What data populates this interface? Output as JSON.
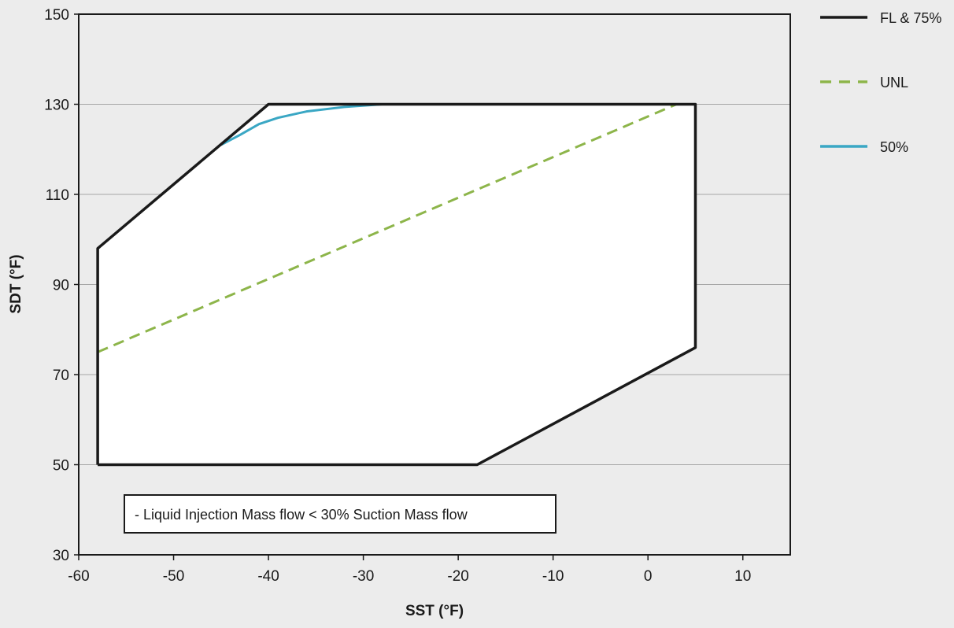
{
  "chart_data": {
    "type": "line",
    "xlabel": "SST (°F)",
    "ylabel": "SDT (°F)",
    "xlim": [
      -60,
      15
    ],
    "ylim": [
      30,
      150
    ],
    "x_ticks": [
      -60,
      -50,
      -40,
      -30,
      -20,
      -10,
      0,
      10
    ],
    "y_ticks": [
      30,
      50,
      70,
      90,
      110,
      130,
      150
    ],
    "grid": "horizontal",
    "legend_position": "right",
    "annotation": "- Liquid Injection Mass flow < 30% Suction Mass flow",
    "series": [
      {
        "name": "FL & 75%",
        "color": "#1a1a1a",
        "style": "solid",
        "points": [
          [
            -58,
            50
          ],
          [
            -58,
            98
          ],
          [
            -40,
            130
          ],
          [
            5,
            130
          ],
          [
            5,
            76
          ],
          [
            -18,
            50
          ],
          [
            -58,
            50
          ]
        ]
      },
      {
        "name": "UNL",
        "color": "#8db54a",
        "style": "dashed",
        "points": [
          [
            -58,
            75
          ],
          [
            3,
            130
          ]
        ]
      },
      {
        "name": "50%",
        "color": "#3aa7c4",
        "style": "solid",
        "points": [
          [
            -45,
            121
          ],
          [
            -43,
            123.2
          ],
          [
            -41,
            125.6
          ],
          [
            -39,
            127
          ],
          [
            -36,
            128.4
          ],
          [
            -32,
            129.4
          ],
          [
            -28,
            130
          ],
          [
            -25,
            130
          ],
          [
            -20,
            130
          ]
        ]
      }
    ]
  }
}
